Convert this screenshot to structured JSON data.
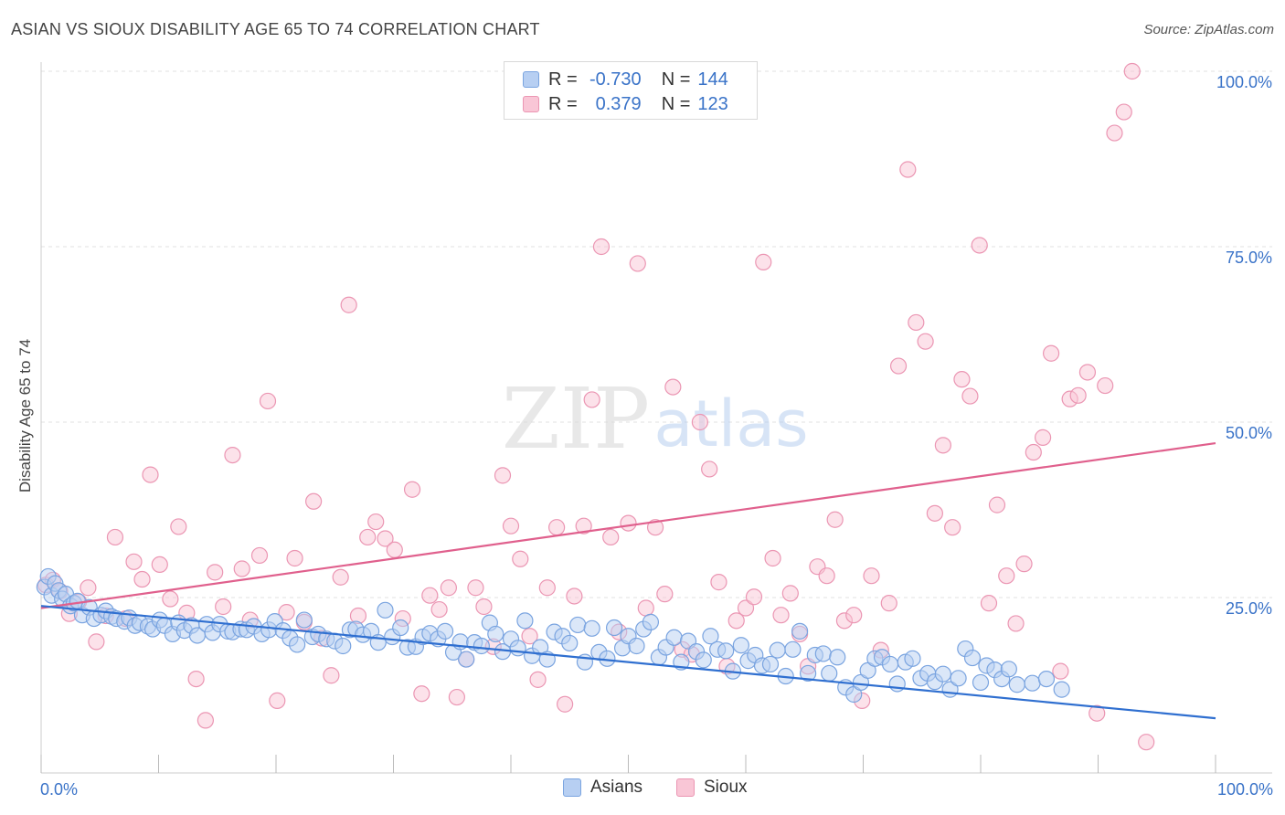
{
  "header": {
    "title": "ASIAN VS SIOUX DISABILITY AGE 65 TO 74 CORRELATION CHART",
    "source": "Source: ZipAtlas.com"
  },
  "watermark": {
    "zip": "ZIP",
    "atlas": "atlas"
  },
  "stats": {
    "asian": {
      "r_label": "R =",
      "r_value": "-0.730",
      "n_label": "N =",
      "n_value": "144"
    },
    "sioux": {
      "r_label": "R =",
      "r_value": "0.379",
      "n_label": "N =",
      "n_value": "123"
    }
  },
  "legend": {
    "asian": "Asians",
    "sioux": "Sioux"
  },
  "colors": {
    "asian_fill": "#b7cff2",
    "asian_stroke": "#7aa4e0",
    "asian_line": "#2f6fd0",
    "sioux_fill": "#f9c6d6",
    "sioux_stroke": "#eb96b3",
    "sioux_line": "#e0608d",
    "tick_label": "#3a73c8",
    "grid": "#e0e0e0"
  },
  "chart_data": {
    "type": "scatter",
    "title": "ASIAN VS SIOUX DISABILITY AGE 65 TO 74 CORRELATION CHART",
    "xlabel": "",
    "ylabel": "Disability Age 65 to 74",
    "xlim": [
      0,
      100
    ],
    "ylim": [
      0,
      100
    ],
    "x_tick_labels": [
      "0.0%",
      "100.0%"
    ],
    "y_ticks": [
      25,
      50,
      75,
      100
    ],
    "y_tick_labels": [
      "25.0%",
      "50.0%",
      "75.0%",
      "100.0%"
    ],
    "grid": true,
    "legend_position": "bottom-center",
    "series": [
      {
        "name": "Asians",
        "r": -0.73,
        "n": 144,
        "trend": {
          "x": [
            0,
            100
          ],
          "y": [
            23.8,
            7.8
          ]
        },
        "points": [
          [
            0.3,
            26.5
          ],
          [
            0.6,
            28
          ],
          [
            0.9,
            25.3
          ],
          [
            1.2,
            27
          ],
          [
            1.5,
            26
          ],
          [
            1.8,
            24.8
          ],
          [
            2.1,
            25.5
          ],
          [
            2.5,
            23.8
          ],
          [
            2.8,
            24.2
          ],
          [
            3.1,
            24.5
          ],
          [
            3.5,
            22.5
          ],
          [
            4.1,
            23.6
          ],
          [
            4.5,
            22
          ],
          [
            5.1,
            22.5
          ],
          [
            5.5,
            23.1
          ],
          [
            6.0,
            22.3
          ],
          [
            6.4,
            22
          ],
          [
            7.1,
            21.6
          ],
          [
            7.5,
            22.1
          ],
          [
            8.0,
            21
          ],
          [
            8.4,
            21.4
          ],
          [
            9.1,
            20.9
          ],
          [
            9.5,
            20.5
          ],
          [
            10.1,
            21.8
          ],
          [
            10.5,
            21
          ],
          [
            11.2,
            19.8
          ],
          [
            11.7,
            21.4
          ],
          [
            12.2,
            20.3
          ],
          [
            12.8,
            21
          ],
          [
            13.3,
            19.6
          ],
          [
            14.1,
            21.2
          ],
          [
            14.6,
            20
          ],
          [
            15.2,
            21.2
          ],
          [
            15.9,
            20.2
          ],
          [
            16.3,
            20.1
          ],
          [
            17.0,
            20.5
          ],
          [
            17.5,
            20.4
          ],
          [
            18.1,
            20.9
          ],
          [
            18.8,
            19.8
          ],
          [
            19.4,
            20.4
          ],
          [
            19.9,
            21.6
          ],
          [
            20.6,
            20.3
          ],
          [
            21.2,
            19.2
          ],
          [
            21.8,
            18.3
          ],
          [
            22.4,
            21.8
          ],
          [
            23.1,
            19.4
          ],
          [
            23.6,
            19.8
          ],
          [
            24.3,
            19.1
          ],
          [
            25.0,
            18.8
          ],
          [
            25.7,
            18.1
          ],
          [
            26.3,
            20.4
          ],
          [
            26.8,
            20.5
          ],
          [
            27.4,
            19.7
          ],
          [
            28.1,
            20.2
          ],
          [
            28.7,
            18.6
          ],
          [
            29.3,
            23.2
          ],
          [
            29.9,
            19.4
          ],
          [
            30.6,
            20.7
          ],
          [
            31.2,
            17.9
          ],
          [
            31.9,
            18
          ],
          [
            32.5,
            19.4
          ],
          [
            33.1,
            19.9
          ],
          [
            33.8,
            19.1
          ],
          [
            34.4,
            20.2
          ],
          [
            35.1,
            17.2
          ],
          [
            35.7,
            18.7
          ],
          [
            36.2,
            16.2
          ],
          [
            36.9,
            18.6
          ],
          [
            37.5,
            18.1
          ],
          [
            38.2,
            21.4
          ],
          [
            38.7,
            19.8
          ],
          [
            39.3,
            17.3
          ],
          [
            40.0,
            19.1
          ],
          [
            40.6,
            17.8
          ],
          [
            41.2,
            21.7
          ],
          [
            41.8,
            16.7
          ],
          [
            42.5,
            17.9
          ],
          [
            43.1,
            16.2
          ],
          [
            43.7,
            20.1
          ],
          [
            44.4,
            19.5
          ],
          [
            45.0,
            18.5
          ],
          [
            45.7,
            21.1
          ],
          [
            46.3,
            15.8
          ],
          [
            46.9,
            20.6
          ],
          [
            47.5,
            17.2
          ],
          [
            48.2,
            16.3
          ],
          [
            48.8,
            20.7
          ],
          [
            49.5,
            17.8
          ],
          [
            50.0,
            19.5
          ],
          [
            50.7,
            18.1
          ],
          [
            51.3,
            20.5
          ],
          [
            51.9,
            21.5
          ],
          [
            52.6,
            16.5
          ],
          [
            53.2,
            17.9
          ],
          [
            53.9,
            19.3
          ],
          [
            54.5,
            15.8
          ],
          [
            55.1,
            18.8
          ],
          [
            55.8,
            17.3
          ],
          [
            56.4,
            16.1
          ],
          [
            57.0,
            19.5
          ],
          [
            57.6,
            17.6
          ],
          [
            58.3,
            17.4
          ],
          [
            58.9,
            14.5
          ],
          [
            59.6,
            18.2
          ],
          [
            60.2,
            16
          ],
          [
            60.8,
            16.8
          ],
          [
            61.4,
            15.3
          ],
          [
            62.1,
            15.5
          ],
          [
            62.7,
            17.5
          ],
          [
            63.4,
            13.8
          ],
          [
            64.0,
            17.6
          ],
          [
            64.6,
            20.2
          ],
          [
            65.3,
            14.2
          ],
          [
            65.9,
            16.8
          ],
          [
            66.6,
            17
          ],
          [
            67.1,
            14.2
          ],
          [
            67.8,
            16.5
          ],
          [
            68.5,
            12.2
          ],
          [
            69.2,
            11.2
          ],
          [
            69.8,
            12.9
          ],
          [
            70.4,
            14.6
          ],
          [
            71.0,
            16.3
          ],
          [
            71.6,
            16.5
          ],
          [
            72.3,
            15.5
          ],
          [
            72.9,
            12.7
          ],
          [
            73.6,
            15.8
          ],
          [
            74.2,
            16.3
          ],
          [
            74.9,
            13.5
          ],
          [
            75.5,
            14.2
          ],
          [
            76.1,
            13
          ],
          [
            76.8,
            14.1
          ],
          [
            77.4,
            11.9
          ],
          [
            78.1,
            13.5
          ],
          [
            78.7,
            17.7
          ],
          [
            79.3,
            16.4
          ],
          [
            80.0,
            12.9
          ],
          [
            80.5,
            15.3
          ],
          [
            81.2,
            14.7
          ],
          [
            81.8,
            13.4
          ],
          [
            82.4,
            14.8
          ],
          [
            83.1,
            12.6
          ],
          [
            84.4,
            12.8
          ],
          [
            85.6,
            13.4
          ],
          [
            86.9,
            11.9
          ]
        ]
      },
      {
        "name": "Sioux",
        "r": 0.379,
        "n": 123,
        "trend": {
          "x": [
            0,
            100
          ],
          "y": [
            23.5,
            47
          ]
        },
        "points": [
          [
            0.4,
            26.8
          ],
          [
            1.0,
            27.5
          ],
          [
            1.6,
            25.9
          ],
          [
            2.4,
            22.7
          ],
          [
            3.2,
            24.4
          ],
          [
            4.0,
            26.4
          ],
          [
            4.7,
            18.7
          ],
          [
            5.5,
            22.4
          ],
          [
            6.3,
            33.6
          ],
          [
            7.2,
            22
          ],
          [
            7.9,
            30.1
          ],
          [
            8.6,
            27.6
          ],
          [
            9.3,
            42.5
          ],
          [
            10.1,
            29.7
          ],
          [
            11.0,
            24.8
          ],
          [
            11.7,
            35.1
          ],
          [
            12.4,
            22.8
          ],
          [
            13.2,
            13.4
          ],
          [
            14.0,
            7.5
          ],
          [
            14.8,
            28.6
          ],
          [
            15.5,
            23.7
          ],
          [
            16.3,
            45.3
          ],
          [
            17.1,
            29.1
          ],
          [
            17.8,
            21.8
          ],
          [
            18.6,
            31
          ],
          [
            19.3,
            53
          ],
          [
            20.1,
            10.3
          ],
          [
            20.9,
            22.9
          ],
          [
            21.6,
            30.6
          ],
          [
            22.4,
            21.5
          ],
          [
            23.2,
            38.7
          ],
          [
            23.9,
            19.2
          ],
          [
            24.7,
            13.9
          ],
          [
            25.5,
            27.9
          ],
          [
            26.2,
            66.7
          ],
          [
            27.0,
            22.4
          ],
          [
            27.8,
            33.6
          ],
          [
            28.5,
            35.8
          ],
          [
            29.3,
            33.4
          ],
          [
            30.1,
            31.8
          ],
          [
            30.8,
            22
          ],
          [
            31.6,
            40.4
          ],
          [
            32.4,
            11.3
          ],
          [
            33.1,
            25.3
          ],
          [
            33.9,
            23.3
          ],
          [
            34.7,
            26.4
          ],
          [
            35.4,
            10.8
          ],
          [
            36.2,
            16.2
          ],
          [
            37.0,
            26.4
          ],
          [
            37.7,
            23.7
          ],
          [
            38.5,
            18
          ],
          [
            39.3,
            42.4
          ],
          [
            40.0,
            35.2
          ],
          [
            40.8,
            30.5
          ],
          [
            41.6,
            19.5
          ],
          [
            42.3,
            13.3
          ],
          [
            43.1,
            26.4
          ],
          [
            43.9,
            35
          ],
          [
            44.6,
            9.8
          ],
          [
            45.4,
            25.2
          ],
          [
            46.2,
            35.2
          ],
          [
            46.9,
            53.2
          ],
          [
            47.7,
            75
          ],
          [
            48.5,
            33.6
          ],
          [
            49.2,
            20.1
          ],
          [
            50.0,
            35.6
          ],
          [
            50.8,
            72.6
          ],
          [
            51.5,
            23.5
          ],
          [
            52.3,
            35
          ],
          [
            53.1,
            25.5
          ],
          [
            53.8,
            55
          ],
          [
            54.6,
            17.6
          ],
          [
            55.4,
            16.9
          ],
          [
            56.1,
            50
          ],
          [
            56.9,
            43.3
          ],
          [
            57.7,
            27.2
          ],
          [
            58.4,
            15.2
          ],
          [
            59.2,
            21.7
          ],
          [
            60.0,
            23.5
          ],
          [
            60.7,
            25.1
          ],
          [
            61.5,
            72.8
          ],
          [
            62.3,
            30.6
          ],
          [
            63.0,
            22.5
          ],
          [
            63.8,
            25.6
          ],
          [
            64.6,
            19.8
          ],
          [
            65.3,
            15.2
          ],
          [
            66.1,
            29.4
          ],
          [
            66.9,
            28.1
          ],
          [
            67.6,
            36.1
          ],
          [
            68.4,
            21.7
          ],
          [
            69.2,
            22.5
          ],
          [
            69.9,
            10.3
          ],
          [
            70.7,
            28.1
          ],
          [
            71.5,
            17.5
          ],
          [
            72.2,
            24.2
          ],
          [
            73.0,
            58
          ],
          [
            73.8,
            86
          ],
          [
            74.5,
            64.2
          ],
          [
            75.3,
            61.5
          ],
          [
            76.1,
            37
          ],
          [
            76.8,
            46.7
          ],
          [
            77.6,
            35
          ],
          [
            78.4,
            56.1
          ],
          [
            79.1,
            53.7
          ],
          [
            79.9,
            75.2
          ],
          [
            80.7,
            24.2
          ],
          [
            81.4,
            38.2
          ],
          [
            82.2,
            28.1
          ],
          [
            83.0,
            21.3
          ],
          [
            83.7,
            29.8
          ],
          [
            84.5,
            45.7
          ],
          [
            85.3,
            47.8
          ],
          [
            86.0,
            59.8
          ],
          [
            86.8,
            14.5
          ],
          [
            87.6,
            53.3
          ],
          [
            88.3,
            53.8
          ],
          [
            89.1,
            57.1
          ],
          [
            89.9,
            8.5
          ],
          [
            90.6,
            55.2
          ],
          [
            91.4,
            91.2
          ],
          [
            92.2,
            94.2
          ],
          [
            92.9,
            100
          ],
          [
            94.1,
            4.4
          ]
        ]
      }
    ]
  }
}
